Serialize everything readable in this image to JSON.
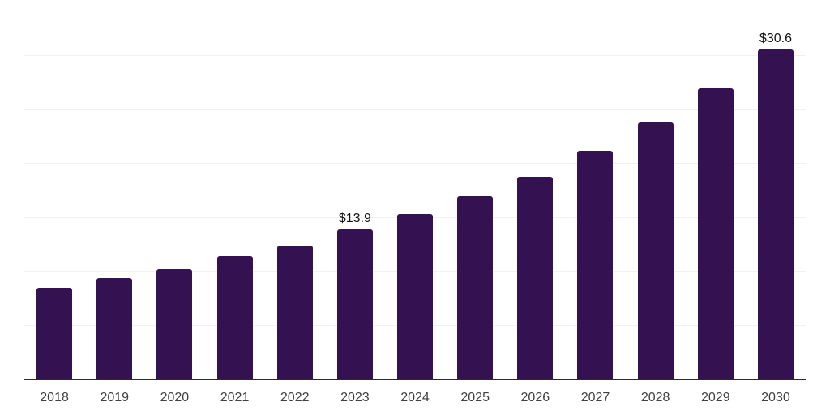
{
  "chart_data": {
    "type": "bar",
    "title": "",
    "categories": [
      "2018",
      "2019",
      "2020",
      "2021",
      "2022",
      "2023",
      "2024",
      "2025",
      "2026",
      "2027",
      "2028",
      "2029",
      "2030"
    ],
    "values": [
      8.5,
      9.4,
      10.2,
      11.4,
      12.4,
      13.9,
      15.3,
      17.0,
      18.8,
      21.2,
      23.8,
      27.0,
      30.6
    ],
    "data_labels": {
      "2023": "$13.9",
      "2030": "$30.6"
    },
    "xlabel": "",
    "ylabel": "",
    "ylim": [
      0,
      35
    ],
    "gridline_step": 5,
    "grid": true,
    "y_axis_tick_labels_visible": false,
    "legend_position": "none",
    "colors": {
      "bar": "#341151",
      "axis_line": "#2b2b2b",
      "gridline": "#f1f1f3",
      "tick_label": "#404040",
      "data_label": "#131313",
      "background": "#ffffff"
    }
  }
}
